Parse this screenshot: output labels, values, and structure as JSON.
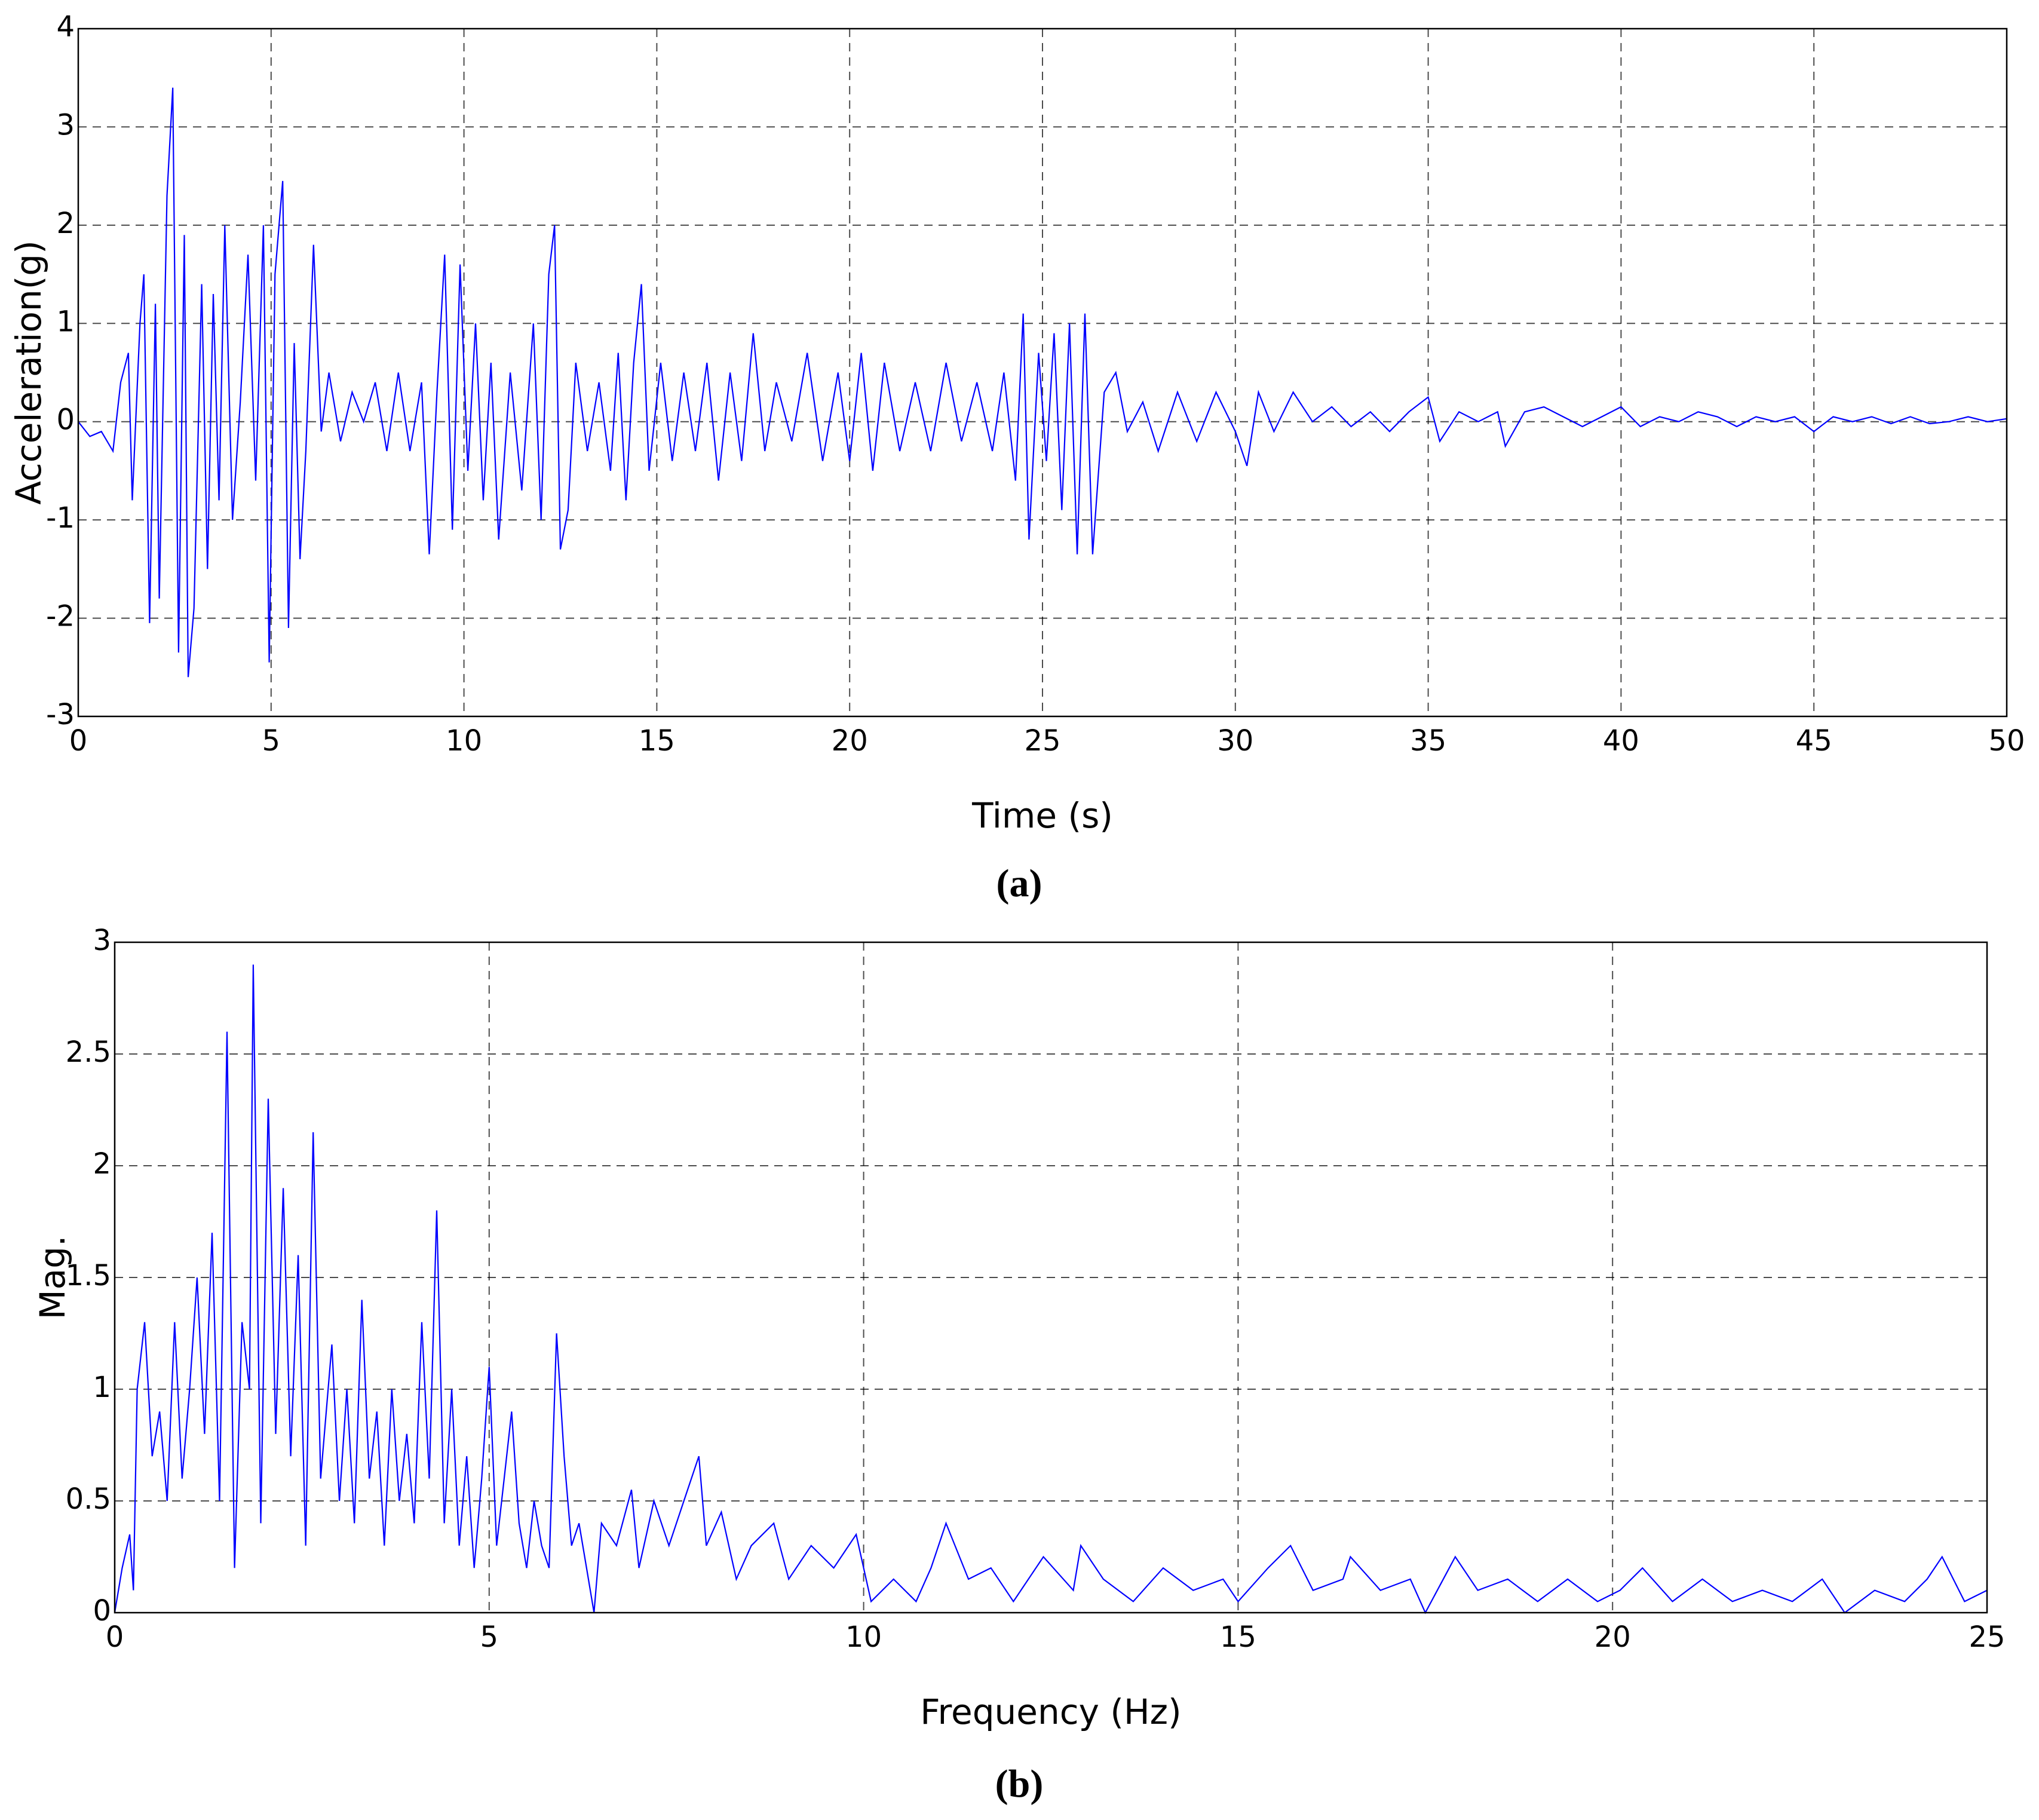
{
  "chart_data": [
    {
      "type": "line",
      "xlabel": "Time (s)",
      "ylabel": "Acceleration(g)",
      "caption": "(a)",
      "color": "#0000ff",
      "grid": true,
      "xlim": [
        0,
        50
      ],
      "ylim": [
        -3,
        4
      ],
      "xticks": [
        0,
        5,
        10,
        15,
        20,
        25,
        30,
        35,
        40,
        45,
        50
      ],
      "yticks": [
        -3,
        -2,
        -1,
        0,
        1,
        2,
        3,
        4
      ],
      "x": [
        0,
        0.3,
        0.6,
        0.9,
        1.1,
        1.3,
        1.4,
        1.6,
        1.7,
        1.85,
        2.0,
        2.1,
        2.3,
        2.45,
        2.6,
        2.75,
        2.85,
        3.0,
        3.2,
        3.35,
        3.5,
        3.65,
        3.8,
        4.0,
        4.2,
        4.4,
        4.6,
        4.8,
        4.95,
        5.1,
        5.3,
        5.45,
        5.6,
        5.75,
        5.9,
        6.1,
        6.3,
        6.5,
        6.8,
        7.1,
        7.4,
        7.7,
        8.0,
        8.3,
        8.6,
        8.9,
        9.1,
        9.3,
        9.5,
        9.7,
        9.9,
        10.1,
        10.3,
        10.5,
        10.7,
        10.9,
        11.2,
        11.5,
        11.8,
        12.0,
        12.2,
        12.35,
        12.5,
        12.7,
        12.9,
        13.2,
        13.5,
        13.8,
        14.0,
        14.2,
        14.4,
        14.6,
        14.8,
        15.1,
        15.4,
        15.7,
        16.0,
        16.3,
        16.6,
        16.9,
        17.2,
        17.5,
        17.8,
        18.1,
        18.5,
        18.9,
        19.3,
        19.7,
        20.0,
        20.3,
        20.6,
        20.9,
        21.3,
        21.7,
        22.1,
        22.5,
        22.9,
        23.3,
        23.7,
        24.0,
        24.3,
        24.5,
        24.65,
        24.9,
        25.1,
        25.3,
        25.5,
        25.7,
        25.9,
        26.1,
        26.3,
        26.6,
        26.9,
        27.2,
        27.6,
        28.0,
        28.5,
        29.0,
        29.5,
        30.0,
        30.3,
        30.6,
        31.0,
        31.5,
        32.0,
        32.5,
        33.0,
        33.5,
        34.0,
        34.5,
        35.0,
        35.3,
        35.8,
        36.3,
        36.8,
        37.0,
        37.5,
        38.0,
        38.5,
        39.0,
        39.5,
        40.0,
        40.5,
        41.0,
        41.5,
        42.0,
        42.5,
        43.0,
        43.5,
        44.0,
        44.5,
        45.0,
        45.5,
        46.0,
        46.5,
        47.0,
        47.5,
        48.0,
        48.5,
        49.0,
        49.5,
        50.0
      ],
      "values": [
        0,
        -0.15,
        -0.1,
        -0.3,
        0.4,
        0.7,
        -0.8,
        1.0,
        1.5,
        -2.05,
        1.2,
        -1.8,
        2.3,
        3.4,
        -2.35,
        1.9,
        -2.6,
        -1.9,
        1.4,
        -1.5,
        1.3,
        -0.8,
        2.0,
        -1.0,
        0.2,
        1.7,
        -0.6,
        2.0,
        -2.45,
        1.5,
        2.45,
        -2.1,
        0.8,
        -1.4,
        -0.3,
        1.8,
        -0.1,
        0.5,
        -0.2,
        0.3,
        0.0,
        0.4,
        -0.3,
        0.5,
        -0.3,
        0.4,
        -1.35,
        0.3,
        1.7,
        -1.1,
        1.6,
        -0.5,
        1.0,
        -0.8,
        0.6,
        -1.2,
        0.5,
        -0.7,
        1.0,
        -1.0,
        1.5,
        2.0,
        -1.3,
        -0.9,
        0.6,
        -0.3,
        0.4,
        -0.5,
        0.7,
        -0.8,
        0.6,
        1.4,
        -0.5,
        0.6,
        -0.4,
        0.5,
        -0.3,
        0.6,
        -0.6,
        0.5,
        -0.4,
        0.9,
        -0.3,
        0.4,
        -0.2,
        0.7,
        -0.4,
        0.5,
        -0.4,
        0.7,
        -0.5,
        0.6,
        -0.3,
        0.4,
        -0.3,
        0.6,
        -0.2,
        0.4,
        -0.3,
        0.5,
        -0.6,
        1.1,
        -1.2,
        0.7,
        -0.4,
        0.9,
        -0.9,
        1.0,
        -1.35,
        1.1,
        -1.35,
        0.3,
        0.5,
        -0.1,
        0.2,
        -0.3,
        0.3,
        -0.2,
        0.3,
        -0.1,
        -0.45,
        0.3,
        -0.1,
        0.3,
        0.0,
        0.15,
        -0.05,
        0.1,
        -0.1,
        0.1,
        0.25,
        -0.2,
        0.1,
        0.0,
        0.1,
        -0.25,
        0.1,
        0.15,
        0.05,
        -0.05,
        0.05,
        0.15,
        -0.05,
        0.05,
        0.0,
        0.1,
        0.05,
        -0.05,
        0.05,
        0.0,
        0.05,
        -0.1,
        0.05,
        0.0,
        0.05,
        -0.02,
        0.05,
        -0.02,
        0.0,
        0.05,
        0.0,
        0.03
      ]
    },
    {
      "type": "line",
      "xlabel": "Frequency (Hz)",
      "ylabel": "Mag.",
      "caption": "(b)",
      "color": "#0000ff",
      "grid": true,
      "xlim": [
        0,
        25
      ],
      "ylim": [
        0,
        3
      ],
      "xticks": [
        0,
        5,
        10,
        15,
        20,
        25
      ],
      "yticks": [
        0,
        0.5,
        1,
        1.5,
        2,
        2.5,
        3
      ],
      "x": [
        0,
        0.1,
        0.2,
        0.25,
        0.3,
        0.4,
        0.5,
        0.6,
        0.7,
        0.8,
        0.9,
        1.0,
        1.1,
        1.2,
        1.3,
        1.4,
        1.5,
        1.6,
        1.7,
        1.8,
        1.85,
        1.95,
        2.05,
        2.15,
        2.25,
        2.35,
        2.45,
        2.55,
        2.65,
        2.75,
        2.9,
        3.0,
        3.1,
        3.2,
        3.3,
        3.4,
        3.5,
        3.6,
        3.7,
        3.8,
        3.9,
        4.0,
        4.1,
        4.2,
        4.3,
        4.4,
        4.5,
        4.6,
        4.7,
        4.8,
        4.9,
        5.0,
        5.1,
        5.2,
        5.3,
        5.4,
        5.5,
        5.6,
        5.7,
        5.8,
        5.9,
        6.0,
        6.1,
        6.2,
        6.3,
        6.4,
        6.5,
        6.7,
        6.9,
        7.0,
        7.2,
        7.4,
        7.6,
        7.8,
        7.9,
        8.1,
        8.3,
        8.5,
        8.8,
        9.0,
        9.3,
        9.6,
        9.9,
        10.1,
        10.4,
        10.7,
        10.9,
        11.1,
        11.4,
        11.7,
        12.0,
        12.4,
        12.8,
        12.9,
        13.2,
        13.6,
        14.0,
        14.4,
        14.8,
        15.0,
        15.4,
        15.7,
        16.0,
        16.4,
        16.5,
        16.9,
        17.3,
        17.5,
        17.9,
        18.2,
        18.6,
        19.0,
        19.4,
        19.8,
        20.1,
        20.4,
        20.8,
        21.2,
        21.6,
        22.0,
        22.4,
        22.8,
        23.1,
        23.5,
        23.9,
        24.2,
        24.4,
        24.7,
        25.0
      ],
      "values": [
        0,
        0.2,
        0.35,
        0.1,
        1.0,
        1.3,
        0.7,
        0.9,
        0.5,
        1.3,
        0.6,
        1.0,
        1.5,
        0.8,
        1.7,
        0.5,
        2.6,
        0.2,
        1.3,
        1.0,
        2.9,
        0.4,
        2.3,
        0.8,
        1.9,
        0.7,
        1.6,
        0.3,
        2.15,
        0.6,
        1.2,
        0.5,
        1.0,
        0.4,
        1.4,
        0.6,
        0.9,
        0.3,
        1.0,
        0.5,
        0.8,
        0.4,
        1.3,
        0.6,
        1.8,
        0.4,
        1.0,
        0.3,
        0.7,
        0.2,
        0.6,
        1.1,
        0.3,
        0.6,
        0.9,
        0.4,
        0.2,
        0.5,
        0.3,
        0.2,
        1.25,
        0.7,
        0.3,
        0.4,
        0.2,
        0.0,
        0.4,
        0.3,
        0.55,
        0.2,
        0.5,
        0.3,
        0.5,
        0.7,
        0.3,
        0.45,
        0.15,
        0.3,
        0.4,
        0.15,
        0.3,
        0.2,
        0.35,
        0.05,
        0.15,
        0.05,
        0.2,
        0.4,
        0.15,
        0.2,
        0.05,
        0.25,
        0.1,
        0.3,
        0.15,
        0.05,
        0.2,
        0.1,
        0.15,
        0.05,
        0.2,
        0.3,
        0.1,
        0.15,
        0.25,
        0.1,
        0.15,
        0.0,
        0.25,
        0.1,
        0.15,
        0.05,
        0.15,
        0.05,
        0.1,
        0.2,
        0.05,
        0.15,
        0.05,
        0.1,
        0.05,
        0.15,
        0.0,
        0.1,
        0.05,
        0.15,
        0.25,
        0.05,
        0.1
      ]
    }
  ]
}
